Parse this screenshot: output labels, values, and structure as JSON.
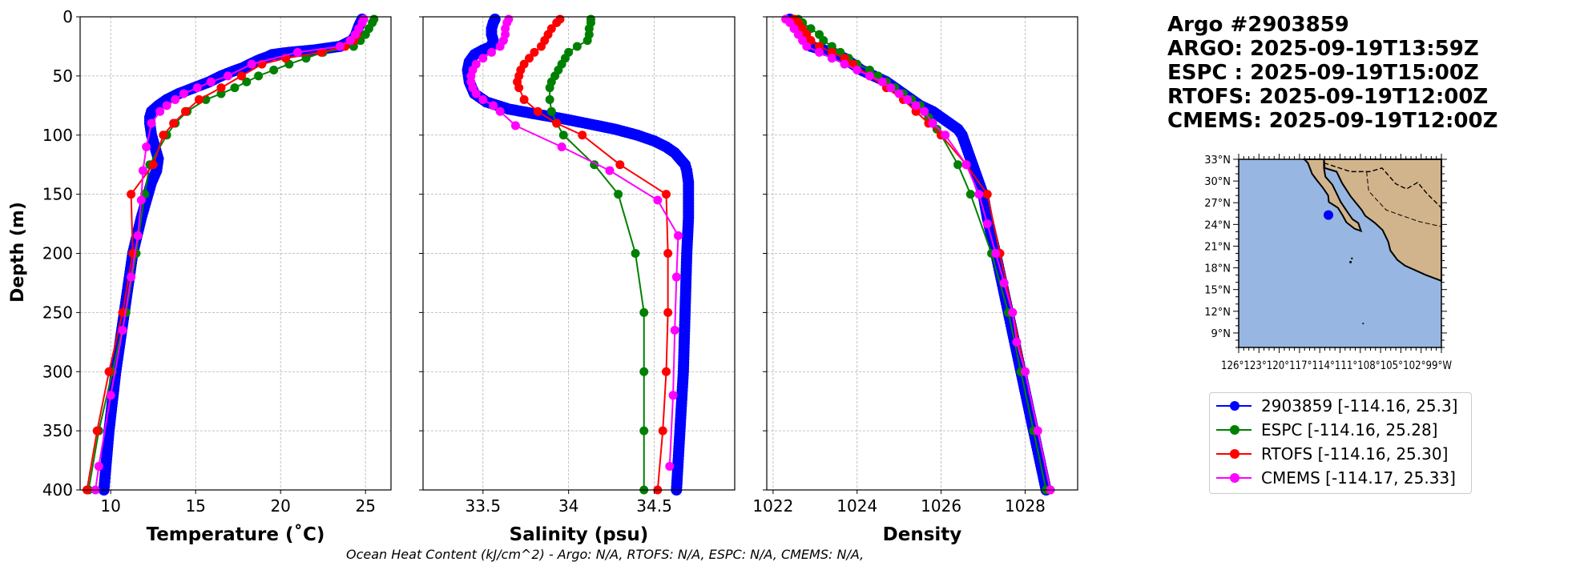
{
  "header": {
    "lines": [
      "Argo #2903859",
      "ARGO: 2025-09-19T13:59Z",
      "ESPC : 2025-09-19T15:00Z",
      "RTOFS: 2025-09-19T12:00Z",
      "CMEMS: 2025-09-19T12:00Z"
    ]
  },
  "footer": {
    "ohc": "Ocean Heat Content (kJ/cm^2) - Argo: N/A,  RTOFS: N/A,  ESPC: N/A,  CMEMS: N/A,"
  },
  "colors": {
    "argo": "#0000ff",
    "espc": "#008000",
    "rtofs": "#ff0000",
    "cmems": "#ff00ff",
    "ocean": "#97b6e1",
    "land": "#d2b48c"
  },
  "legend": [
    {
      "label": "2903859 [-114.16, 25.3]",
      "color": "#0000ff"
    },
    {
      "label": "ESPC [-114.16, 25.28]",
      "color": "#008000"
    },
    {
      "label": "RTOFS [-114.16, 25.30]",
      "color": "#ff0000"
    },
    {
      "label": "CMEMS [-114.17, 25.33]",
      "color": "#ff00ff"
    }
  ],
  "map": {
    "lat_labels": [
      "33°N",
      "30°N",
      "27°N",
      "24°N",
      "21°N",
      "18°N",
      "15°N",
      "12°N",
      "9°N"
    ],
    "lon_label_text": "126°123°120°117°114°111°108°105°102°99°W",
    "float_lon": -114.16,
    "float_lat": 25.3
  },
  "chart_data": [
    {
      "type": "line",
      "title": "",
      "xlabel": "Temperature (˚C)",
      "ylabel": "Depth (m)",
      "xlim": [
        8.2,
        26.5
      ],
      "ylim": [
        400,
        0
      ],
      "xticks": [
        10,
        15,
        20,
        25
      ],
      "yticks": [
        0,
        50,
        100,
        150,
        200,
        250,
        300,
        350,
        400
      ],
      "grid": true,
      "series": [
        {
          "name": "2903859",
          "depth": [
            2,
            5,
            8,
            12,
            16,
            20,
            25,
            28,
            30,
            32,
            34,
            36,
            38,
            40,
            43,
            46,
            50,
            55,
            60,
            65,
            70,
            75,
            80,
            85,
            90,
            100,
            110,
            120,
            130,
            140,
            150,
            170,
            200,
            250,
            300,
            350,
            400
          ],
          "values": [
            24.8,
            24.7,
            24.6,
            24.5,
            24.4,
            24.2,
            23.5,
            22.0,
            20.5,
            19.5,
            19.2,
            18.8,
            18.5,
            18.2,
            17.8,
            17.2,
            16.5,
            15.8,
            14.9,
            14.0,
            13.3,
            12.8,
            12.4,
            12.3,
            12.3,
            12.4,
            12.6,
            12.8,
            12.7,
            12.4,
            12.2,
            11.8,
            11.3,
            10.8,
            10.3,
            9.9,
            9.6
          ]
        },
        {
          "name": "ESPC",
          "depth": [
            2,
            5,
            10,
            15,
            20,
            25,
            30,
            35,
            40,
            45,
            50,
            55,
            60,
            65,
            70,
            80,
            90,
            100,
            125,
            150,
            200,
            250,
            300,
            350,
            400
          ],
          "values": [
            25.5,
            25.4,
            25.2,
            25.0,
            24.7,
            24.3,
            22.5,
            21.5,
            20.5,
            19.6,
            18.7,
            18.0,
            17.3,
            16.5,
            15.6,
            14.5,
            13.8,
            13.3,
            12.3,
            12.0,
            11.5,
            10.9,
            10.1,
            9.3,
            8.7
          ]
        },
        {
          "name": "RTOFS",
          "depth": [
            2,
            5,
            10,
            15,
            20,
            25,
            30,
            35,
            40,
            50,
            60,
            70,
            80,
            90,
            100,
            125,
            150,
            200,
            250,
            300,
            350,
            400
          ],
          "values": [
            24.9,
            24.8,
            24.6,
            24.5,
            24.3,
            23.8,
            22.4,
            20.3,
            18.9,
            17.7,
            16.5,
            15.2,
            14.4,
            13.7,
            13.1,
            12.5,
            11.2,
            11.3,
            10.7,
            9.9,
            9.2,
            8.6
          ]
        },
        {
          "name": "CMEMS",
          "depth": [
            2,
            5,
            10,
            15,
            20,
            25,
            30,
            40,
            50,
            55,
            60,
            65,
            70,
            75,
            80,
            90,
            110,
            130,
            155,
            185,
            220,
            265,
            320,
            380,
            400
          ],
          "values": [
            24.9,
            24.8,
            24.6,
            24.4,
            24.1,
            23.5,
            21.0,
            18.3,
            16.9,
            15.9,
            15.1,
            14.3,
            13.8,
            13.3,
            12.9,
            12.4,
            12.1,
            11.9,
            11.8,
            11.6,
            11.2,
            10.7,
            10.0,
            9.3,
            9.1
          ]
        }
      ]
    },
    {
      "type": "line",
      "title": "",
      "xlabel": "Salinity (psu)",
      "ylabel": "",
      "xlim": [
        33.15,
        34.97
      ],
      "ylim": [
        400,
        0
      ],
      "xticks": [
        33.5,
        34.0,
        34.5
      ],
      "yticks": [
        0,
        50,
        100,
        150,
        200,
        250,
        300,
        350,
        400
      ],
      "grid": true,
      "series": [
        {
          "name": "2903859",
          "depth": [
            2,
            5,
            10,
            15,
            20,
            25,
            28,
            32,
            38,
            45,
            55,
            65,
            72,
            78,
            82,
            86,
            90,
            95,
            100,
            105,
            110,
            115,
            120,
            125,
            130,
            140,
            150,
            170,
            200,
            250,
            300,
            350,
            400
          ],
          "values": [
            33.57,
            33.56,
            33.55,
            33.55,
            33.56,
            33.55,
            33.5,
            33.45,
            33.42,
            33.41,
            33.42,
            33.45,
            33.52,
            33.65,
            33.8,
            33.96,
            34.1,
            34.27,
            34.4,
            34.5,
            34.57,
            34.62,
            34.65,
            34.68,
            34.69,
            34.7,
            34.7,
            34.7,
            34.69,
            34.68,
            34.67,
            34.65,
            34.63
          ]
        },
        {
          "name": "ESPC",
          "depth": [
            2,
            5,
            10,
            15,
            20,
            25,
            30,
            35,
            40,
            45,
            50,
            55,
            60,
            70,
            80,
            90,
            100,
            125,
            150,
            200,
            250,
            300,
            350,
            400
          ],
          "values": [
            34.13,
            34.13,
            34.12,
            34.12,
            34.11,
            34.05,
            34.0,
            33.98,
            33.96,
            33.94,
            33.92,
            33.9,
            33.89,
            33.89,
            33.9,
            33.93,
            33.97,
            34.15,
            34.29,
            34.39,
            34.44,
            34.44,
            34.44,
            34.44
          ]
        },
        {
          "name": "RTOFS",
          "depth": [
            2,
            5,
            10,
            15,
            20,
            25,
            30,
            35,
            40,
            45,
            50,
            55,
            60,
            70,
            80,
            90,
            100,
            125,
            150,
            200,
            250,
            300,
            350,
            400
          ],
          "values": [
            33.95,
            33.93,
            33.9,
            33.88,
            33.86,
            33.84,
            33.8,
            33.77,
            33.74,
            33.72,
            33.71,
            33.7,
            33.71,
            33.74,
            33.82,
            33.93,
            34.08,
            34.3,
            34.57,
            34.58,
            34.58,
            34.57,
            34.55,
            34.52
          ]
        },
        {
          "name": "CMEMS",
          "depth": [
            2,
            5,
            10,
            15,
            20,
            25,
            30,
            35,
            40,
            45,
            50,
            55,
            60,
            65,
            70,
            75,
            80,
            92,
            110,
            130,
            155,
            185,
            220,
            265,
            320,
            380
          ],
          "values": [
            33.65,
            33.64,
            33.63,
            33.63,
            33.62,
            33.6,
            33.55,
            33.5,
            33.46,
            33.44,
            33.43,
            33.43,
            33.44,
            33.46,
            33.5,
            33.56,
            33.6,
            33.69,
            33.96,
            34.24,
            34.52,
            34.64,
            34.63,
            34.62,
            34.61,
            34.59
          ]
        }
      ]
    },
    {
      "type": "line",
      "title": "",
      "xlabel": "Density",
      "ylabel": "",
      "xlim": [
        1021.85,
        1029.25
      ],
      "ylim": [
        400,
        0
      ],
      "xticks": [
        1022,
        1024,
        1026,
        1028
      ],
      "yticks": [
        0,
        50,
        100,
        150,
        200,
        250,
        300,
        350,
        400
      ],
      "grid": true,
      "series": [
        {
          "name": "2903859",
          "depth": [
            2,
            5,
            10,
            15,
            20,
            25,
            30,
            35,
            40,
            45,
            50,
            55,
            60,
            65,
            70,
            75,
            80,
            85,
            90,
            95,
            100,
            110,
            120,
            130,
            140,
            150,
            170,
            200,
            250,
            300,
            350,
            400
          ],
          "values": [
            1022.4,
            1022.5,
            1022.6,
            1022.7,
            1022.8,
            1022.9,
            1023.4,
            1023.7,
            1023.9,
            1024.1,
            1024.4,
            1024.7,
            1024.9,
            1025.1,
            1025.3,
            1025.5,
            1025.8,
            1026.0,
            1026.2,
            1026.4,
            1026.5,
            1026.6,
            1026.7,
            1026.8,
            1026.9,
            1027.0,
            1027.1,
            1027.3,
            1027.6,
            1027.9,
            1028.2,
            1028.5
          ]
        },
        {
          "name": "ESPC",
          "depth": [
            2,
            5,
            10,
            15,
            20,
            25,
            30,
            35,
            40,
            45,
            50,
            55,
            60,
            65,
            70,
            75,
            80,
            85,
            90,
            95,
            100,
            125,
            150,
            200,
            250,
            300,
            350,
            400
          ],
          "values": [
            1022.6,
            1022.7,
            1022.9,
            1023.1,
            1023.2,
            1023.4,
            1023.6,
            1023.8,
            1024.0,
            1024.3,
            1024.5,
            1024.7,
            1024.9,
            1025.1,
            1025.3,
            1025.5,
            1025.6,
            1025.7,
            1025.8,
            1025.9,
            1026.0,
            1026.4,
            1026.7,
            1027.2,
            1027.6,
            1027.9,
            1028.2,
            1028.5
          ]
        },
        {
          "name": "RTOFS",
          "depth": [
            2,
            5,
            10,
            15,
            20,
            25,
            30,
            35,
            40,
            50,
            60,
            70,
            80,
            90,
            100,
            125,
            150,
            200,
            250,
            300,
            350,
            400
          ],
          "values": [
            1022.5,
            1022.6,
            1022.7,
            1022.8,
            1022.9,
            1023.1,
            1023.4,
            1023.7,
            1023.9,
            1024.3,
            1024.7,
            1025.1,
            1025.4,
            1025.7,
            1026.0,
            1026.6,
            1027.1,
            1027.4,
            1027.7,
            1028.0,
            1028.3,
            1028.6
          ]
        },
        {
          "name": "CMEMS",
          "depth": [
            2,
            5,
            10,
            15,
            20,
            25,
            30,
            35,
            40,
            45,
            50,
            55,
            60,
            65,
            70,
            75,
            80,
            90,
            100,
            125,
            150,
            175,
            200,
            225,
            250,
            275,
            300,
            350,
            400
          ],
          "values": [
            1022.3,
            1022.4,
            1022.5,
            1022.6,
            1022.7,
            1022.8,
            1023.1,
            1023.4,
            1023.7,
            1024.0,
            1024.3,
            1024.6,
            1024.8,
            1025.0,
            1025.2,
            1025.4,
            1025.6,
            1025.8,
            1026.1,
            1026.6,
            1026.9,
            1027.1,
            1027.3,
            1027.5,
            1027.7,
            1027.8,
            1028.0,
            1028.3,
            1028.6
          ]
        }
      ]
    }
  ]
}
